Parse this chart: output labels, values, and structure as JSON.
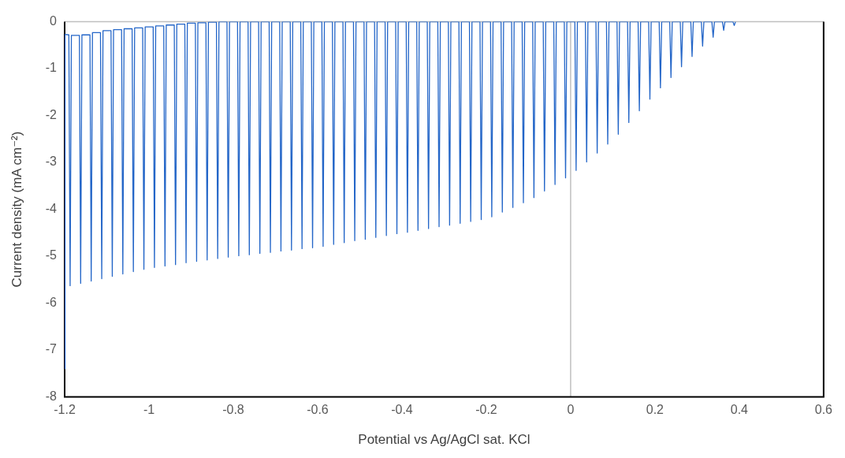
{
  "chart_data": {
    "type": "line",
    "xlabel": "Potential vs Ag/AgCl sat. KCl",
    "ylabel": "Current density (mA cm⁻²)",
    "xlim": [
      -1.2,
      0.6
    ],
    "xticks": [
      -1.2,
      -1,
      -0.8,
      -0.6,
      -0.4,
      -0.2,
      0,
      0.2,
      0.4,
      0.6
    ],
    "ylim": [
      -8,
      0
    ],
    "yticks": [
      -8,
      -7,
      -6,
      -5,
      -4,
      -3,
      -2,
      -1,
      0
    ],
    "grid": false,
    "ref_lines": [
      {
        "axis": "x",
        "value": 0,
        "color": "#bfbfbf"
      }
    ],
    "legend": false,
    "marker": "none",
    "line_style": "solid",
    "series": [
      {
        "color": "#2466c8",
        "x": [
          -1.2,
          -1.199,
          -1.19,
          -1.187,
          -1.184,
          -1.165,
          -1.162,
          -1.159,
          -1.14,
          -1.137,
          -1.134,
          -1.115,
          -1.112,
          -1.109,
          -1.09,
          -1.087,
          -1.084,
          -1.065,
          -1.062,
          -1.059,
          -1.04,
          -1.037,
          -1.034,
          -1.015,
          -1.012,
          -1.009,
          -0.99,
          -0.987,
          -0.984,
          -0.965,
          -0.962,
          -0.959,
          -0.94,
          -0.937,
          -0.934,
          -0.915,
          -0.912,
          -0.909,
          -0.89,
          -0.887,
          -0.884,
          -0.865,
          -0.862,
          -0.859,
          -0.84,
          -0.837,
          -0.834,
          -0.815,
          -0.812,
          -0.809,
          -0.79,
          -0.787,
          -0.784,
          -0.765,
          -0.762,
          -0.759,
          -0.74,
          -0.737,
          -0.734,
          -0.715,
          -0.712,
          -0.709,
          -0.69,
          -0.687,
          -0.684,
          -0.665,
          -0.662,
          -0.659,
          -0.64,
          -0.637,
          -0.634,
          -0.615,
          -0.612,
          -0.609,
          -0.59,
          -0.587,
          -0.584,
          -0.565,
          -0.562,
          -0.559,
          -0.54,
          -0.537,
          -0.534,
          -0.515,
          -0.512,
          -0.509,
          -0.49,
          -0.487,
          -0.484,
          -0.465,
          -0.462,
          -0.459,
          -0.44,
          -0.437,
          -0.434,
          -0.415,
          -0.412,
          -0.409,
          -0.39,
          -0.387,
          -0.384,
          -0.365,
          -0.362,
          -0.359,
          -0.34,
          -0.337,
          -0.334,
          -0.315,
          -0.312,
          -0.309,
          -0.29,
          -0.287,
          -0.284,
          -0.265,
          -0.262,
          -0.259,
          -0.24,
          -0.237,
          -0.234,
          -0.215,
          -0.212,
          -0.209,
          -0.19,
          -0.187,
          -0.184,
          -0.165,
          -0.162,
          -0.159,
          -0.14,
          -0.137,
          -0.134,
          -0.115,
          -0.112,
          -0.109,
          -0.09,
          -0.087,
          -0.084,
          -0.065,
          -0.062,
          -0.059,
          -0.04,
          -0.037,
          -0.034,
          -0.015,
          -0.012,
          -0.009,
          0.01,
          0.013,
          0.016,
          0.035,
          0.038,
          0.041,
          0.06,
          0.063,
          0.066,
          0.085,
          0.088,
          0.091,
          0.11,
          0.113,
          0.116,
          0.135,
          0.138,
          0.141,
          0.16,
          0.163,
          0.166,
          0.185,
          0.188,
          0.191,
          0.21,
          0.213,
          0.216,
          0.235,
          0.238,
          0.241,
          0.26,
          0.263,
          0.266,
          0.285,
          0.288,
          0.291,
          0.31,
          0.313,
          0.316,
          0.335,
          0.338,
          0.341,
          0.36,
          0.363,
          0.366,
          0.385,
          0.388,
          0.391
        ],
        "values": [
          -7.4,
          -0.27,
          -0.28,
          -5.63,
          -0.29,
          -0.29,
          -5.58,
          -0.28,
          -0.28,
          -5.53,
          -0.23,
          -0.23,
          -5.48,
          -0.19,
          -0.19,
          -5.43,
          -0.17,
          -0.17,
          -5.38,
          -0.15,
          -0.15,
          -5.33,
          -0.13,
          -0.13,
          -5.28,
          -0.11,
          -0.11,
          -5.24,
          -0.09,
          -0.09,
          -5.21,
          -0.07,
          -0.07,
          -5.18,
          -0.05,
          -0.05,
          -5.14,
          -0.03,
          -0.03,
          -5.11,
          -0.02,
          -0.02,
          -5.08,
          -0.01,
          -0.01,
          -5.05,
          0,
          0,
          -5.02,
          0,
          0,
          -4.99,
          0,
          0,
          -4.97,
          0,
          0,
          -4.94,
          0,
          0,
          -4.92,
          0,
          0,
          -4.89,
          0,
          0,
          -4.87,
          0,
          0,
          -4.84,
          0,
          0,
          -4.82,
          0,
          0,
          -4.79,
          0,
          0,
          -4.75,
          0,
          0,
          -4.71,
          0,
          0,
          -4.67,
          0,
          0,
          -4.64,
          0,
          0,
          -4.6,
          0,
          0,
          -4.56,
          0,
          0,
          -4.52,
          0,
          0,
          -4.49,
          0,
          0,
          -4.45,
          0,
          0,
          -4.41,
          0,
          0,
          -4.37,
          0,
          0,
          -4.34,
          0,
          0,
          -4.3,
          0,
          0,
          -4.26,
          0,
          0,
          -4.22,
          0,
          0,
          -4.16,
          0,
          0,
          -4.06,
          0,
          0,
          -3.96,
          0,
          0,
          -3.86,
          0,
          0,
          -3.75,
          0,
          0,
          -3.61,
          0,
          0,
          -3.47,
          0,
          0,
          -3.33,
          0,
          0,
          -3.17,
          0,
          0,
          -2.99,
          0,
          0,
          -2.8,
          0,
          0,
          -2.61,
          0,
          0,
          -2.4,
          0,
          0,
          -2.15,
          0,
          0,
          -1.9,
          0,
          0,
          -1.65,
          0,
          0,
          -1.41,
          0,
          0,
          -1.19,
          0,
          0,
          -0.96,
          0,
          0,
          -0.74,
          0,
          0,
          -0.52,
          0,
          0,
          -0.33,
          0,
          0,
          -0.18,
          0,
          0,
          -0.08,
          0
        ]
      }
    ]
  }
}
